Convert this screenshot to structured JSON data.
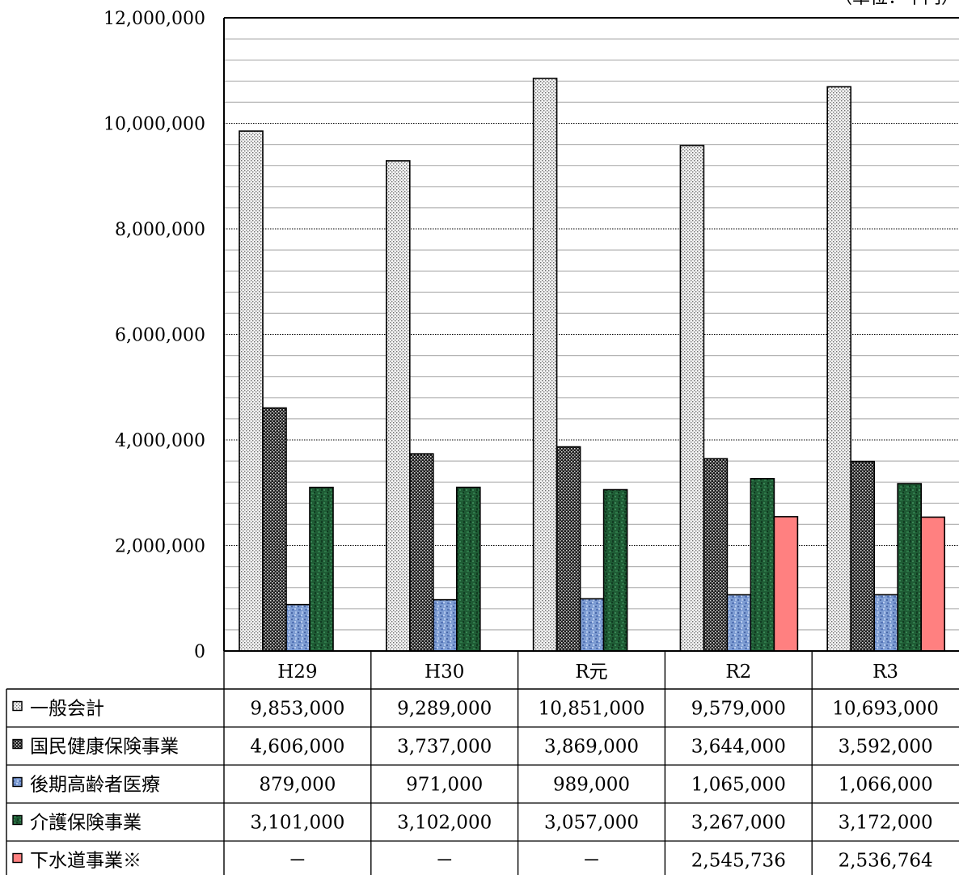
{
  "unit_label": "（単位：千円）",
  "chart_data": {
    "type": "bar",
    "title": "",
    "xlabel": "",
    "ylabel": "",
    "ylim": [
      0,
      12000000
    ],
    "y_ticks": [
      0,
      2000000,
      4000000,
      6000000,
      8000000,
      10000000,
      12000000
    ],
    "y_tick_labels": [
      "0",
      "2,000,000",
      "4,000,000",
      "6,000,000",
      "8,000,000",
      "10,000,000",
      "12,000,000"
    ],
    "minor_gridline_step": 400000,
    "grid": true,
    "legend": "data-table",
    "categories": [
      "H29",
      "H30",
      "R元",
      "R2",
      "R3"
    ],
    "series": [
      {
        "name": "一般会計",
        "pattern": "light-dots",
        "color": "#f2f2f2",
        "values": [
          9853000,
          9289000,
          10851000,
          9579000,
          10693000
        ],
        "display": [
          "9,853,000",
          "9,289,000",
          "10,851,000",
          "9,579,000",
          "10,693,000"
        ]
      },
      {
        "name": "国民健康保険事業",
        "pattern": "dark-dots",
        "color": "#2b2b2b",
        "values": [
          4606000,
          3737000,
          3869000,
          3644000,
          3592000
        ],
        "display": [
          "4,606,000",
          "3,737,000",
          "3,869,000",
          "3,644,000",
          "3,592,000"
        ]
      },
      {
        "name": "後期高齢者医療",
        "pattern": "blue-texture",
        "color": "#7f9fd4",
        "values": [
          879000,
          971000,
          989000,
          1065000,
          1066000
        ],
        "display": [
          "879,000",
          "971,000",
          "989,000",
          "1,065,000",
          "1,066,000"
        ]
      },
      {
        "name": "介護保険事業",
        "pattern": "green-texture",
        "color": "#1d5a33",
        "values": [
          3101000,
          3102000,
          3057000,
          3267000,
          3172000
        ],
        "display": [
          "3,101,000",
          "3,102,000",
          "3,057,000",
          "3,267,000",
          "3,172,000"
        ]
      },
      {
        "name": "下水道事業※",
        "pattern": "solid",
        "color": "#ff8080",
        "values": [
          null,
          null,
          null,
          2545736,
          2536764
        ],
        "display": [
          "－",
          "－",
          "－",
          "2,545,736",
          "2,536,764"
        ]
      }
    ]
  }
}
